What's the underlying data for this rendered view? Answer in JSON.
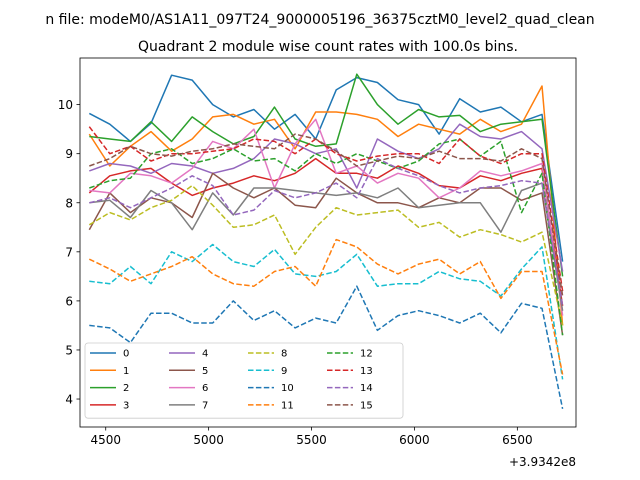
{
  "figure": {
    "suptitle": "n file: modeM0/AS1A11_097T24_9000005196_36375cztM0_level2_quad_clean",
    "x_offset_label": "+3.9342e8"
  },
  "chart_data": {
    "type": "line",
    "title": "Quadrant 2 module wise count rates with 100.0s bins.",
    "xlabel": "",
    "ylabel": "",
    "x_offset": 393420000,
    "xlim": [
      4375,
      6785
    ],
    "ylim": [
      3.43,
      10.95
    ],
    "xticks": [
      4500,
      5000,
      5500,
      6000,
      6500
    ],
    "yticks": [
      4,
      5,
      6,
      7,
      8,
      9,
      10
    ],
    "legend": {
      "placement": "lower-left",
      "ncol": 4
    },
    "grid": false,
    "x": [
      4420,
      4520,
      4620,
      4720,
      4820,
      4920,
      5020,
      5120,
      5220,
      5320,
      5420,
      5520,
      5620,
      5720,
      5820,
      5920,
      6020,
      6120,
      6220,
      6320,
      6420,
      6520,
      6620,
      6720
    ],
    "series": [
      {
        "name": "0",
        "color": "#1f77b4",
        "dash": "solid",
        "values": [
          9.82,
          9.6,
          9.25,
          9.62,
          10.6,
          10.5,
          10.0,
          9.75,
          9.9,
          9.5,
          9.8,
          9.3,
          10.3,
          10.55,
          10.45,
          10.1,
          10.0,
          9.4,
          10.12,
          9.85,
          9.95,
          9.65,
          9.8,
          6.8
        ]
      },
      {
        "name": "1",
        "color": "#ff7f0e",
        "dash": "solid",
        "values": [
          9.4,
          8.75,
          9.15,
          9.45,
          9.05,
          9.3,
          9.75,
          9.8,
          9.6,
          9.7,
          9.1,
          9.85,
          9.85,
          9.8,
          9.7,
          9.35,
          9.6,
          9.5,
          9.4,
          9.7,
          9.45,
          9.6,
          10.38,
          5.5
        ]
      },
      {
        "name": "2",
        "color": "#2ca02c",
        "dash": "solid",
        "values": [
          9.35,
          9.3,
          9.25,
          9.65,
          9.25,
          9.75,
          9.45,
          9.2,
          9.35,
          9.95,
          9.3,
          9.15,
          9.2,
          10.62,
          10.0,
          9.6,
          9.9,
          9.75,
          9.78,
          9.45,
          9.6,
          9.65,
          9.7,
          6.5
        ]
      },
      {
        "name": "3",
        "color": "#d62728",
        "dash": "solid",
        "values": [
          8.2,
          8.55,
          8.65,
          8.7,
          8.4,
          8.15,
          8.3,
          8.4,
          8.55,
          8.45,
          8.6,
          8.9,
          8.6,
          8.6,
          8.5,
          8.75,
          8.6,
          8.35,
          8.3,
          8.55,
          8.45,
          8.6,
          8.7,
          5.9
        ]
      },
      {
        "name": "4",
        "color": "#9467bd",
        "dash": "solid",
        "values": [
          8.65,
          8.8,
          8.75,
          8.6,
          8.8,
          8.75,
          8.6,
          8.7,
          8.9,
          9.3,
          9.2,
          9.0,
          9.1,
          8.3,
          9.3,
          9.05,
          8.9,
          9.1,
          9.6,
          9.35,
          9.3,
          9.45,
          9.1,
          6.6
        ]
      },
      {
        "name": "5",
        "color": "#8c564b",
        "dash": "solid",
        "values": [
          7.45,
          8.2,
          7.8,
          8.1,
          8.0,
          7.7,
          8.6,
          8.3,
          8.1,
          8.3,
          7.95,
          7.9,
          8.5,
          8.2,
          8.0,
          8.0,
          7.9,
          8.1,
          8.0,
          8.3,
          8.3,
          8.05,
          8.2,
          5.3
        ]
      },
      {
        "name": "6",
        "color": "#e377c2",
        "dash": "solid",
        "values": [
          8.25,
          8.2,
          8.6,
          8.55,
          8.4,
          8.7,
          9.25,
          9.1,
          9.5,
          8.3,
          9.2,
          9.7,
          8.6,
          8.75,
          8.4,
          8.6,
          8.5,
          8.1,
          8.3,
          8.65,
          8.55,
          8.65,
          8.8,
          5.7
        ]
      },
      {
        "name": "7",
        "color": "#7f7f7f",
        "dash": "solid",
        "values": [
          8.0,
          8.05,
          7.7,
          8.25,
          8.0,
          7.45,
          8.2,
          7.75,
          8.3,
          8.3,
          8.25,
          8.2,
          8.15,
          8.2,
          8.1,
          8.3,
          7.9,
          7.95,
          8.0,
          8.0,
          7.4,
          8.25,
          8.4,
          5.8
        ]
      },
      {
        "name": "8",
        "color": "#bcbd22",
        "dash": "dashed",
        "values": [
          7.55,
          7.8,
          7.65,
          7.9,
          8.05,
          8.35,
          7.95,
          7.5,
          7.55,
          7.75,
          6.95,
          7.5,
          7.9,
          7.75,
          7.8,
          7.85,
          7.5,
          7.6,
          7.3,
          7.45,
          7.35,
          7.2,
          7.4,
          5.5
        ]
      },
      {
        "name": "9",
        "color": "#17becf",
        "dash": "dashed",
        "values": [
          6.4,
          6.35,
          6.7,
          6.35,
          7.0,
          6.8,
          7.15,
          6.8,
          6.7,
          7.05,
          6.55,
          6.5,
          6.6,
          6.95,
          6.3,
          6.35,
          6.35,
          6.6,
          6.45,
          6.4,
          6.1,
          6.65,
          7.1,
          4.4
        ]
      },
      {
        "name": "10",
        "color": "#1f77b4",
        "dash": "dashed",
        "values": [
          5.5,
          5.45,
          5.15,
          5.75,
          5.75,
          5.55,
          5.55,
          6.0,
          5.6,
          5.8,
          5.45,
          5.65,
          5.55,
          6.3,
          5.4,
          5.7,
          5.8,
          5.7,
          5.55,
          5.75,
          5.35,
          5.95,
          5.85,
          3.8
        ]
      },
      {
        "name": "11",
        "color": "#ff7f0e",
        "dash": "dashed",
        "values": [
          6.85,
          6.65,
          6.4,
          6.55,
          6.7,
          6.9,
          6.55,
          6.35,
          6.3,
          6.6,
          6.7,
          6.3,
          7.25,
          7.1,
          6.75,
          6.55,
          6.75,
          6.85,
          6.55,
          6.8,
          6.05,
          6.6,
          6.6,
          4.5
        ]
      },
      {
        "name": "12",
        "color": "#2ca02c",
        "dash": "dashed",
        "values": [
          8.3,
          8.45,
          8.5,
          9.0,
          9.1,
          8.8,
          8.9,
          9.1,
          8.85,
          8.9,
          8.65,
          9.0,
          8.8,
          9.0,
          8.85,
          8.7,
          8.85,
          9.2,
          9.3,
          8.95,
          9.25,
          7.8,
          8.6,
          5.3
        ]
      },
      {
        "name": "13",
        "color": "#d62728",
        "dash": "dashed",
        "values": [
          9.55,
          9.0,
          9.15,
          8.85,
          9.0,
          9.0,
          9.05,
          9.1,
          9.3,
          9.25,
          9.0,
          9.3,
          9.0,
          8.85,
          8.95,
          9.0,
          9.0,
          8.8,
          9.3,
          8.95,
          8.8,
          9.0,
          9.0,
          6.2
        ]
      },
      {
        "name": "14",
        "color": "#9467bd",
        "dash": "dashed",
        "values": [
          8.0,
          8.1,
          7.9,
          8.1,
          8.3,
          8.55,
          8.35,
          7.75,
          7.85,
          8.25,
          8.1,
          8.2,
          8.4,
          8.1,
          8.9,
          8.7,
          8.55,
          8.35,
          8.2,
          8.3,
          8.35,
          8.45,
          8.4,
          5.9
        ]
      },
      {
        "name": "15",
        "color": "#8c564b",
        "dash": "dashed",
        "values": [
          8.75,
          8.9,
          9.15,
          9.0,
          8.95,
          9.05,
          9.1,
          9.2,
          9.15,
          9.1,
          9.4,
          9.3,
          9.05,
          8.75,
          8.85,
          8.95,
          8.9,
          9.05,
          8.9,
          8.9,
          8.85,
          9.1,
          8.9,
          6.1
        ]
      }
    ]
  }
}
